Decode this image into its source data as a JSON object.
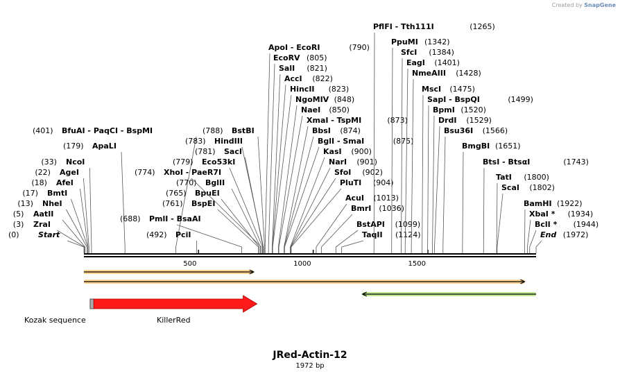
{
  "credit": {
    "prefix": "Created by",
    "brand": "SnapGene"
  },
  "sequence": {
    "name": "JRed-Actin-12",
    "length_label": "1972 bp",
    "length": 1972
  },
  "ruler": {
    "ticks": [
      500,
      1000,
      1500
    ]
  },
  "sites": [
    {
      "pos": 0,
      "label": "(0)",
      "names": [
        "Start"
      ],
      "style": "italic"
    },
    {
      "pos": 3,
      "label": "(3)",
      "names": [
        "ZraI"
      ]
    },
    {
      "pos": 5,
      "label": "(5)",
      "names": [
        "AatII"
      ]
    },
    {
      "pos": 13,
      "label": "(13)",
      "names": [
        "NheI"
      ]
    },
    {
      "pos": 17,
      "label": "(17)",
      "names": [
        "BmtI"
      ]
    },
    {
      "pos": 18,
      "label": "(18)",
      "names": [
        "AfeI"
      ]
    },
    {
      "pos": 22,
      "label": "(22)",
      "names": [
        "AgeI"
      ]
    },
    {
      "pos": 33,
      "label": "(33)",
      "names": [
        "NcoI"
      ]
    },
    {
      "pos": 179,
      "label": "(179)",
      "names": [
        "ApaLI"
      ]
    },
    {
      "pos": 401,
      "label": "(401)",
      "names": [
        "BfuAI",
        "PaqCI",
        "BspMI"
      ]
    },
    {
      "pos": 492,
      "label": "(492)",
      "names": [
        "PciI"
      ]
    },
    {
      "pos": 688,
      "label": "(688)",
      "names": [
        "PmlI",
        "BsaAI"
      ]
    },
    {
      "pos": 761,
      "label": "(761)",
      "names": [
        "BspEI"
      ]
    },
    {
      "pos": 765,
      "label": "(765)",
      "names": [
        "BpuEI"
      ]
    },
    {
      "pos": 770,
      "label": "(770)",
      "names": [
        "BglII"
      ]
    },
    {
      "pos": 774,
      "label": "(774)",
      "names": [
        "XhoI",
        "PaeR7I"
      ]
    },
    {
      "pos": 779,
      "label": "(779)",
      "names": [
        "Eco53kI"
      ]
    },
    {
      "pos": 781,
      "label": "(781)",
      "names": [
        "SacI"
      ]
    },
    {
      "pos": 783,
      "label": "(783)",
      "names": [
        "HindIII"
      ]
    },
    {
      "pos": 788,
      "label": "(788)",
      "names": [
        "BstBI"
      ]
    },
    {
      "pos": 790,
      "label": "(790)",
      "names": [
        "ApoI",
        "EcoRI"
      ]
    },
    {
      "pos": 805,
      "label": "(805)",
      "names": [
        "EcoRV"
      ]
    },
    {
      "pos": 821,
      "label": "(821)",
      "names": [
        "SalI"
      ]
    },
    {
      "pos": 822,
      "label": "(822)",
      "names": [
        "AccI"
      ]
    },
    {
      "pos": 823,
      "label": "(823)",
      "names": [
        "HincII"
      ]
    },
    {
      "pos": 848,
      "label": "(848)",
      "names": [
        "NgoMIV"
      ]
    },
    {
      "pos": 850,
      "label": "(850)",
      "names": [
        "NaeI"
      ]
    },
    {
      "pos": 873,
      "label": "(873)",
      "names": [
        "XmaI",
        "TspMI"
      ]
    },
    {
      "pos": 874,
      "label": "(874)",
      "names": [
        "BbsI"
      ]
    },
    {
      "pos": 875,
      "label": "(875)",
      "names": [
        "BglI",
        "SmaI"
      ]
    },
    {
      "pos": 900,
      "label": "(900)",
      "names": [
        "KasI"
      ]
    },
    {
      "pos": 901,
      "label": "(901)",
      "names": [
        "NarI"
      ]
    },
    {
      "pos": 902,
      "label": "(902)",
      "names": [
        "SfoI"
      ]
    },
    {
      "pos": 904,
      "label": "(904)",
      "names": [
        "PluTI"
      ]
    },
    {
      "pos": 1013,
      "label": "(1013)",
      "names": [
        "AcuI"
      ]
    },
    {
      "pos": 1036,
      "label": "(1036)",
      "names": [
        "BmrI"
      ]
    },
    {
      "pos": 1099,
      "label": "(1099)",
      "names": [
        "BstAPI"
      ]
    },
    {
      "pos": 1124,
      "label": "(1124)",
      "names": [
        "TaqII"
      ]
    },
    {
      "pos": 1265,
      "label": "(1265)",
      "names": [
        "PflFI",
        "Tth111I"
      ]
    },
    {
      "pos": 1342,
      "label": "(1342)",
      "names": [
        "PpuMI"
      ]
    },
    {
      "pos": 1384,
      "label": "(1384)",
      "names": [
        "SfcI"
      ]
    },
    {
      "pos": 1401,
      "label": "(1401)",
      "names": [
        "EagI"
      ]
    },
    {
      "pos": 1428,
      "label": "(1428)",
      "names": [
        "NmeAIII"
      ]
    },
    {
      "pos": 1475,
      "label": "(1475)",
      "names": [
        "MscI"
      ]
    },
    {
      "pos": 1499,
      "label": "(1499)",
      "names": [
        "SapI",
        "BspQI"
      ]
    },
    {
      "pos": 1520,
      "label": "(1520)",
      "names": [
        "BpmI"
      ]
    },
    {
      "pos": 1529,
      "label": "(1529)",
      "names": [
        "DrdI"
      ]
    },
    {
      "pos": 1566,
      "label": "(1566)",
      "names": [
        "Bsu36I"
      ]
    },
    {
      "pos": 1651,
      "label": "(1651)",
      "names": [
        "BmgBI"
      ]
    },
    {
      "pos": 1743,
      "label": "(1743)",
      "names": [
        "BtsI",
        "BtsαI"
      ]
    },
    {
      "pos": 1800,
      "label": "(1800)",
      "names": [
        "TatI"
      ]
    },
    {
      "pos": 1802,
      "label": "(1802)",
      "names": [
        "ScaI"
      ]
    },
    {
      "pos": 1922,
      "label": "(1922)",
      "names": [
        "BamHI"
      ]
    },
    {
      "pos": 1934,
      "label": "(1934)",
      "names": [
        "XbaI *"
      ]
    },
    {
      "pos": 1944,
      "label": "(1944)",
      "names": [
        "BclI *"
      ]
    },
    {
      "pos": 1972,
      "label": "(1972)",
      "names": [
        "End"
      ],
      "style": "italic"
    }
  ],
  "tracks": [
    {
      "start": 0,
      "end": 740,
      "direction": "forward",
      "color": "#f5a623"
    },
    {
      "start": 0,
      "end": 1922,
      "direction": "forward",
      "color": "#f5a623"
    },
    {
      "start": 1215,
      "end": 1972,
      "direction": "reverse",
      "color": "#7ed321"
    }
  ],
  "features": [
    {
      "name": "Kozak sequence",
      "start": 27,
      "end": 43,
      "color": "#aaaaaa"
    },
    {
      "name": "KillerRed",
      "start": 43,
      "end": 755,
      "color": "#ff1a1a"
    }
  ]
}
